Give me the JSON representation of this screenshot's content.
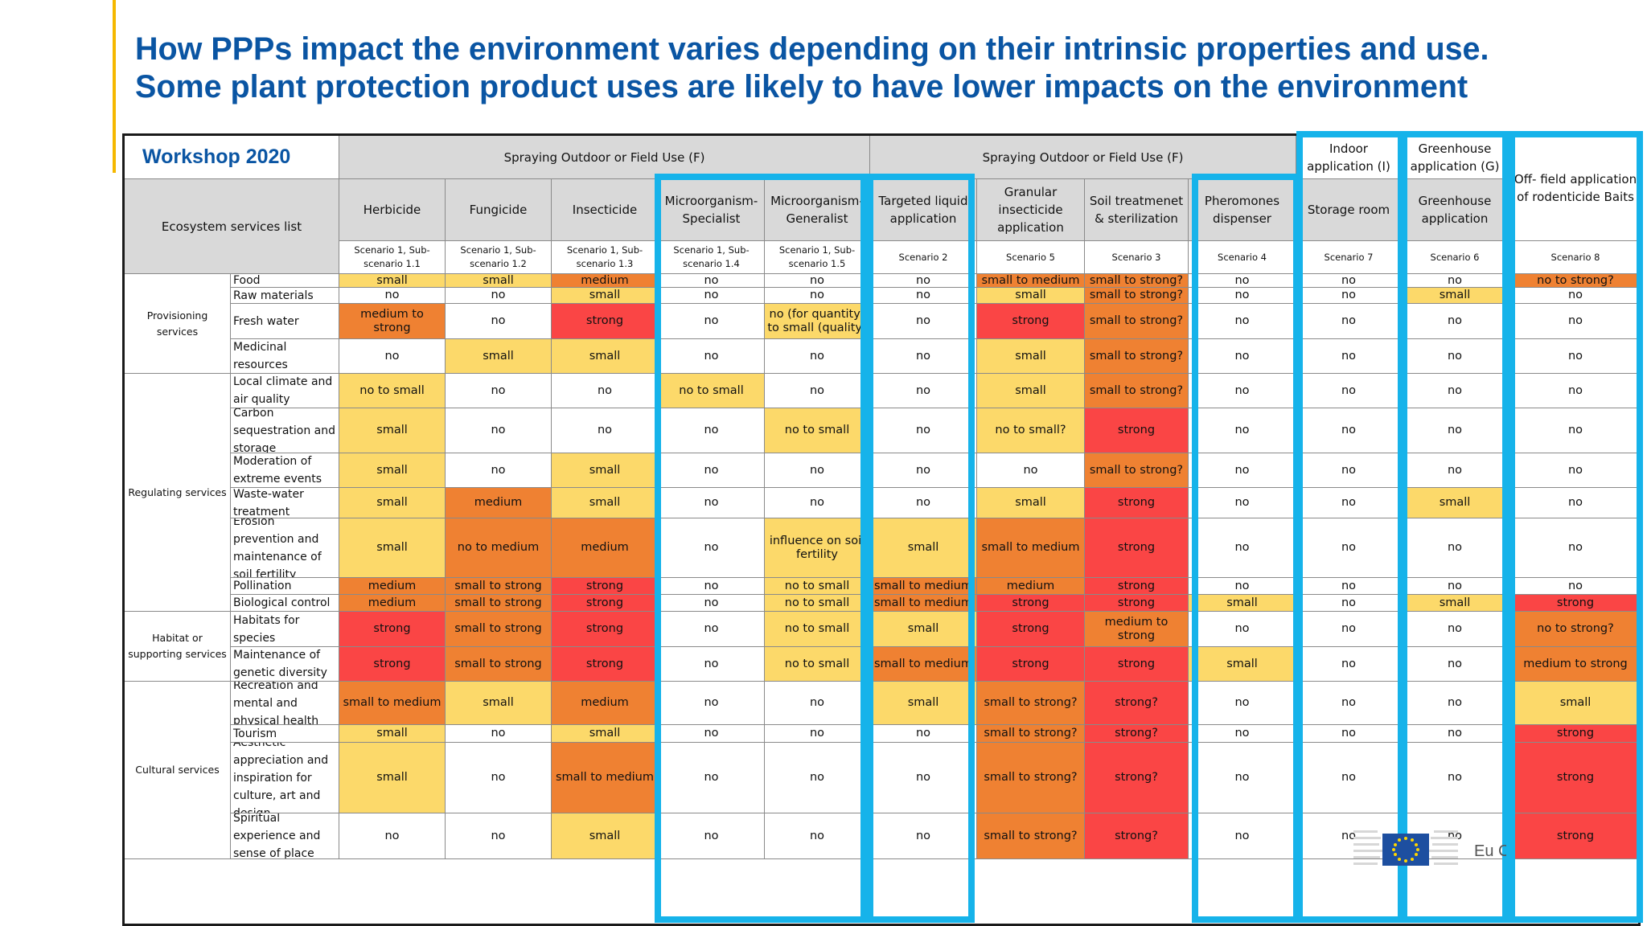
{
  "slide": {
    "title_line1": "How PPPs impact the environment varies depending on their intrinsic properties and use.",
    "title_line2": "Some plant protection product uses are likely to have lower impacts on the environment",
    "accent_color": "#f5b800",
    "title_color": "#0a55a3",
    "highlight_color": "#16b3ea",
    "logo_text": "Eu C"
  },
  "table": {
    "workshop_label": "Workshop 2020",
    "corner_label": "Ecosystem services list",
    "groups": [
      {
        "label": "Spraying Outdoor or Field Use (F)"
      },
      {
        "label": "Spraying Outdoor or Field Use (F)"
      },
      {
        "label": "Indoor application (I)"
      },
      {
        "label": "Greenhouse application (G)"
      },
      {
        "label": "Off- field application of rodenticide Baits"
      }
    ],
    "columns": [
      {
        "name": "Herbicide",
        "scenario": "Scenario 1, Sub-scenario 1.1"
      },
      {
        "name": "Fungicide",
        "scenario": "Scenario 1, Sub-scenario 1.2"
      },
      {
        "name": "Insecticide",
        "scenario": "Scenario 1, Sub-scenario 1.3"
      },
      {
        "name": "Microorganism- Specialist",
        "scenario": "Scenario 1, Sub-scenario 1.4"
      },
      {
        "name": "Microorganism- Generalist",
        "scenario": "Scenario 1, Sub-scenario 1.5"
      },
      {
        "name": "Targeted liquid application",
        "scenario": "Scenario 2"
      },
      {
        "name": "Granular insecticide application",
        "scenario": "Scenario 5"
      },
      {
        "name": "Soil treatmenet & sterilization",
        "scenario": "Scenario 3"
      },
      {
        "name": "Pheromones dispenser",
        "scenario": "Scenario 4"
      },
      {
        "name": "Storage room",
        "scenario": "Scenario 7"
      },
      {
        "name": "Greenhouse application",
        "scenario": "Scenario 6"
      },
      {
        "name": "",
        "scenario": "Scenario 8"
      }
    ],
    "service_groups": [
      {
        "label": "Provisioning services"
      },
      {
        "label": "Regulating services"
      },
      {
        "label": "Habitat or supporting services"
      },
      {
        "label": "Cultural services"
      }
    ],
    "rows": [
      {
        "service": "Food",
        "values": [
          "small",
          "small",
          "medium",
          "no",
          "no",
          "no",
          "small to medium",
          "small to strong?",
          "no",
          "no",
          "no",
          "no to strong?"
        ]
      },
      {
        "service": "Raw materials",
        "values": [
          "no",
          "no",
          "small",
          "no",
          "no",
          "no",
          "small",
          "small to strong?",
          "no",
          "no",
          "small",
          "no"
        ]
      },
      {
        "service": "Fresh water",
        "values": [
          "medium to strong",
          "no",
          "strong",
          "no",
          "no (for quantity) to small (quality)",
          "no",
          "strong",
          "small to strong?",
          "no",
          "no",
          "no",
          "no"
        ]
      },
      {
        "service": "Medicinal resources",
        "values": [
          "no",
          "small",
          "small",
          "no",
          "no",
          "no",
          "small",
          "small to strong?",
          "no",
          "no",
          "no",
          "no"
        ]
      },
      {
        "service": "Local climate and air quality",
        "values": [
          "no to small",
          "no",
          "no",
          "no to small",
          "no",
          "no",
          "small",
          "small to strong?",
          "no",
          "no",
          "no",
          "no"
        ]
      },
      {
        "service": "Carbon sequestration and storage",
        "values": [
          "small",
          "no",
          "no",
          "no",
          "no to small",
          "no",
          "no to small?",
          "strong",
          "no",
          "no",
          "no",
          "no"
        ]
      },
      {
        "service": "Moderation of extreme events",
        "values": [
          "small",
          "no",
          "small",
          "no",
          "no",
          "no",
          "no",
          "small to strong?",
          "no",
          "no",
          "no",
          "no"
        ]
      },
      {
        "service": "Waste-water treatment",
        "values": [
          "small",
          "medium",
          "small",
          "no",
          "no",
          "no",
          "small",
          "strong",
          "no",
          "no",
          "small",
          "no"
        ]
      },
      {
        "service": "Erosion prevention and maintenance of soil fertility",
        "values": [
          "small",
          "no to medium",
          "medium",
          "no",
          "influence on soil fertility",
          "small",
          "small to medium",
          "strong",
          "no",
          "no",
          "no",
          "no"
        ]
      },
      {
        "service": "Pollination",
        "values": [
          "medium",
          "small to strong",
          "strong",
          "no",
          "no to small",
          "small to medium",
          "medium",
          "strong",
          "no",
          "no",
          "no",
          "no"
        ]
      },
      {
        "service": "Biological control",
        "values": [
          "medium",
          "small to strong",
          "strong",
          "no",
          "no to small",
          "small to medium",
          "strong",
          "strong",
          "small",
          "no",
          "small",
          "strong"
        ]
      },
      {
        "service": "Habitats for species",
        "values": [
          "strong",
          "small to strong",
          "strong",
          "no",
          "no to small",
          "small",
          "strong",
          "medium to strong",
          "no",
          "no",
          "no",
          "no to strong?"
        ]
      },
      {
        "service": "Maintenance of genetic diversity",
        "values": [
          "strong",
          "small to strong",
          "strong",
          "no",
          "no to small",
          "small to medium",
          "strong",
          "strong",
          "small",
          "no",
          "no",
          "medium to strong"
        ]
      },
      {
        "service": "Recreation and mental and physical health",
        "values": [
          "small to medium",
          "small",
          "medium",
          "no",
          "no",
          "small",
          "small to strong?",
          "strong?",
          "no",
          "no",
          "no",
          "small"
        ]
      },
      {
        "service": "Tourism",
        "values": [
          "small",
          "no",
          "small",
          "no",
          "no",
          "no",
          "small to strong?",
          "strong?",
          "no",
          "no",
          "no",
          "strong"
        ]
      },
      {
        "service": "Aesthetic appreciation and inspiration for culture, art and design",
        "values": [
          "small",
          "no",
          "small to medium",
          "no",
          "no",
          "no",
          "small to strong?",
          "strong?",
          "no",
          "no",
          "no",
          "strong"
        ]
      },
      {
        "service": "Spiritual experience and sense of place",
        "values": [
          "no",
          "no",
          "small",
          "no",
          "no",
          "no",
          "small to strong?",
          "strong?",
          "no",
          "no",
          "no",
          "strong"
        ]
      }
    ],
    "colors": {
      "no": "#ffffff",
      "small": "#fcd96a",
      "medium": "#ef8132",
      "strong": "#fa4545",
      "header": "#d9d9d9"
    }
  }
}
